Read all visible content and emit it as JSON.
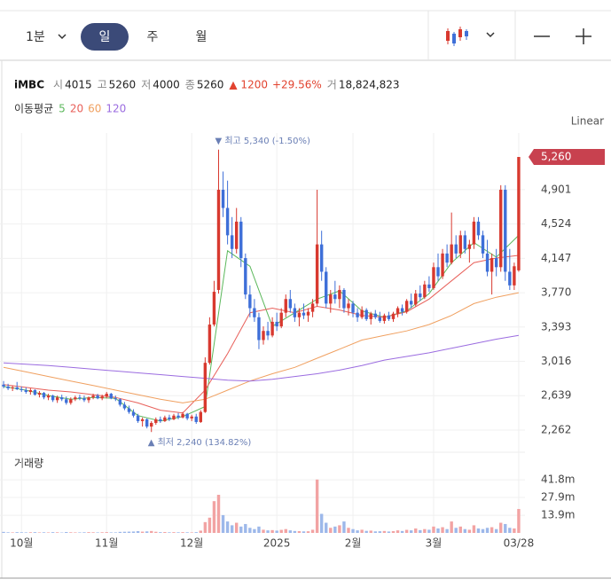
{
  "toolbar": {
    "intervals": [
      "1분",
      "일",
      "주",
      "월"
    ]
  },
  "header": {
    "symbol": "iMBC",
    "fields": [
      {
        "label": "시",
        "value": "4015"
      },
      {
        "label": "고",
        "value": "5260"
      },
      {
        "label": "저",
        "value": "4000"
      },
      {
        "label": "종",
        "value": "5260"
      }
    ],
    "change": "▲ 1200",
    "change_pct": "+29.56%",
    "volume_label": "거",
    "volume_value": "18,824,823"
  },
  "chart_data": {
    "type": "candlestick",
    "scale_button": "Linear",
    "ma_title": "이동평균",
    "up_color": "#d8392f",
    "down_color": "#3e6fd8",
    "grid": true,
    "ylim": [
      2067,
      5523
    ],
    "yticks": [
      {
        "value": 2262,
        "label": "2,262"
      },
      {
        "value": 2639,
        "label": "2,639"
      },
      {
        "value": 3016,
        "label": "3,016"
      },
      {
        "value": 3393,
        "label": "3,393"
      },
      {
        "value": 3770,
        "label": "3,770"
      },
      {
        "value": 4147,
        "label": "4,147"
      },
      {
        "value": 4524,
        "label": "4,524"
      },
      {
        "value": 4901,
        "label": "4,901"
      }
    ],
    "xlim": [
      -0.8,
      116.4
    ],
    "xticks": [
      {
        "value": 4,
        "label": "10월"
      },
      {
        "value": 23,
        "label": "11월"
      },
      {
        "value": 42,
        "label": "12월"
      },
      {
        "value": 61,
        "label": "2025"
      },
      {
        "value": 78,
        "label": "2월"
      },
      {
        "value": 96,
        "label": "3월"
      },
      {
        "value": 115,
        "label": "03/28"
      }
    ],
    "price_tag": {
      "value": 5260,
      "label": "5,260"
    },
    "annotations": [
      {
        "text": "▼ 최고 5,340 (-1.50%)",
        "value": 5340,
        "kind": "high"
      },
      {
        "text": "▲ 최저 2,240 (134.82%)",
        "value": 2240,
        "kind": "low"
      }
    ],
    "candles": [
      [
        2760,
        2800,
        2720,
        2740
      ],
      [
        2740,
        2770,
        2700,
        2720
      ],
      [
        2720,
        2750,
        2690,
        2730
      ],
      [
        2730,
        2790,
        2700,
        2710
      ],
      [
        2710,
        2740,
        2680,
        2700
      ],
      [
        2700,
        2730,
        2660,
        2680
      ],
      [
        2680,
        2720,
        2650,
        2700
      ],
      [
        2700,
        2710,
        2640,
        2650
      ],
      [
        2650,
        2690,
        2620,
        2670
      ],
      [
        2670,
        2680,
        2600,
        2620
      ],
      [
        2620,
        2660,
        2590,
        2640
      ],
      [
        2640,
        2650,
        2570,
        2590
      ],
      [
        2590,
        2640,
        2560,
        2620
      ],
      [
        2620,
        2650,
        2580,
        2600
      ],
      [
        2600,
        2630,
        2540,
        2560
      ],
      [
        2560,
        2620,
        2540,
        2600
      ],
      [
        2600,
        2640,
        2580,
        2620
      ],
      [
        2620,
        2650,
        2590,
        2610
      ],
      [
        2610,
        2640,
        2570,
        2590
      ],
      [
        2590,
        2630,
        2560,
        2620
      ],
      [
        2620,
        2660,
        2600,
        2640
      ],
      [
        2640,
        2660,
        2600,
        2610
      ],
      [
        2610,
        2650,
        2590,
        2630
      ],
      [
        2630,
        2680,
        2610,
        2660
      ],
      [
        2660,
        2670,
        2600,
        2610
      ],
      [
        2610,
        2640,
        2580,
        2600
      ],
      [
        2600,
        2610,
        2520,
        2540
      ],
      [
        2540,
        2570,
        2480,
        2500
      ],
      [
        2500,
        2530,
        2440,
        2460
      ],
      [
        2460,
        2490,
        2400,
        2420
      ],
      [
        2420,
        2440,
        2340,
        2360
      ],
      [
        2360,
        2400,
        2300,
        2380
      ],
      [
        2380,
        2390,
        2280,
        2300
      ],
      [
        2300,
        2360,
        2240,
        2340
      ],
      [
        2340,
        2400,
        2320,
        2380
      ],
      [
        2380,
        2410,
        2340,
        2360
      ],
      [
        2360,
        2420,
        2350,
        2400
      ],
      [
        2400,
        2430,
        2360,
        2380
      ],
      [
        2380,
        2440,
        2370,
        2420
      ],
      [
        2420,
        2450,
        2380,
        2400
      ],
      [
        2400,
        2460,
        2390,
        2440
      ],
      [
        2440,
        2450,
        2370,
        2390
      ],
      [
        2390,
        2430,
        2360,
        2410
      ],
      [
        2410,
        2440,
        2330,
        2350
      ],
      [
        2350,
        2480,
        2340,
        2460
      ],
      [
        2460,
        3060,
        2450,
        3000
      ],
      [
        3000,
        3500,
        2980,
        3420
      ],
      [
        3420,
        3900,
        3400,
        3780
      ],
      [
        3800,
        5340,
        3760,
        4900
      ],
      [
        4900,
        5100,
        4600,
        4700
      ],
      [
        4700,
        5000,
        4300,
        4400
      ],
      [
        4400,
        4600,
        4150,
        4250
      ],
      [
        4250,
        4700,
        4200,
        4550
      ],
      [
        4550,
        4600,
        4050,
        4150
      ],
      [
        4150,
        4200,
        3700,
        3750
      ],
      [
        3750,
        3850,
        3500,
        3600
      ],
      [
        3600,
        3700,
        3450,
        3500
      ],
      [
        3500,
        3550,
        3150,
        3250
      ],
      [
        3250,
        3400,
        3200,
        3350
      ],
      [
        3350,
        3450,
        3250,
        3300
      ],
      [
        3300,
        3500,
        3280,
        3450
      ],
      [
        3450,
        3550,
        3350,
        3400
      ],
      [
        3400,
        3600,
        3380,
        3550
      ],
      [
        3550,
        3750,
        3500,
        3700
      ],
      [
        3700,
        3800,
        3550,
        3600
      ],
      [
        3600,
        3650,
        3450,
        3500
      ],
      [
        3500,
        3600,
        3400,
        3550
      ],
      [
        3550,
        3650,
        3480,
        3520
      ],
      [
        3520,
        3600,
        3450,
        3560
      ],
      [
        3560,
        3700,
        3500,
        3650
      ],
      [
        3650,
        4900,
        3620,
        4300
      ],
      [
        4300,
        4450,
        3900,
        4000
      ],
      [
        4000,
        4050,
        3600,
        3650
      ],
      [
        3650,
        3800,
        3550,
        3750
      ],
      [
        3750,
        3900,
        3650,
        3700
      ],
      [
        3700,
        3850,
        3600,
        3800
      ],
      [
        3800,
        3820,
        3550,
        3600
      ],
      [
        3600,
        3700,
        3520,
        3650
      ],
      [
        3650,
        3680,
        3500,
        3550
      ],
      [
        3550,
        3600,
        3450,
        3500
      ],
      [
        3500,
        3620,
        3480,
        3580
      ],
      [
        3580,
        3600,
        3460,
        3480
      ],
      [
        3480,
        3560,
        3420,
        3540
      ],
      [
        3540,
        3580,
        3480,
        3500
      ],
      [
        3500,
        3560,
        3440,
        3460
      ],
      [
        3460,
        3540,
        3430,
        3520
      ],
      [
        3520,
        3560,
        3460,
        3480
      ],
      [
        3480,
        3560,
        3450,
        3540
      ],
      [
        3540,
        3620,
        3500,
        3600
      ],
      [
        3600,
        3640,
        3520,
        3560
      ],
      [
        3560,
        3700,
        3540,
        3680
      ],
      [
        3680,
        3760,
        3600,
        3640
      ],
      [
        3640,
        3800,
        3620,
        3760
      ],
      [
        3760,
        3850,
        3680,
        3720
      ],
      [
        3720,
        3900,
        3700,
        3860
      ],
      [
        3860,
        3950,
        3780,
        3820
      ],
      [
        3820,
        4100,
        3800,
        4050
      ],
      [
        4050,
        4200,
        3900,
        3950
      ],
      [
        3950,
        4250,
        3920,
        4200
      ],
      [
        4200,
        4300,
        4050,
        4100
      ],
      [
        4100,
        4650,
        4080,
        4300
      ],
      [
        4300,
        4400,
        4150,
        4200
      ],
      [
        4200,
        4450,
        4150,
        4400
      ],
      [
        4400,
        4450,
        4200,
        4250
      ],
      [
        4250,
        4350,
        4100,
        4300
      ],
      [
        4300,
        4600,
        4250,
        4550
      ],
      [
        4550,
        4600,
        4350,
        4400
      ],
      [
        4400,
        4450,
        4150,
        4200
      ],
      [
        4200,
        4350,
        3950,
        4000
      ],
      [
        4000,
        4200,
        3750,
        4150
      ],
      [
        4150,
        4250,
        3950,
        4050
      ],
      [
        4050,
        4950,
        4000,
        4900
      ],
      [
        4900,
        4950,
        3900,
        4000
      ],
      [
        4000,
        4250,
        3800,
        3850
      ],
      [
        3850,
        4100,
        3800,
        4060
      ],
      [
        4015,
        5260,
        4000,
        5260
      ]
    ],
    "ma": [
      {
        "name": "5",
        "color": "#5cb85c",
        "x": [
          0,
          5,
          10,
          15,
          20,
          25,
          30,
          35,
          40,
          45,
          50,
          55,
          60,
          65,
          70,
          75,
          80,
          85,
          90,
          95,
          100,
          105,
          110,
          115
        ],
        "values": [
          2740,
          2700,
          2640,
          2600,
          2620,
          2610,
          2420,
          2360,
          2410,
          2520,
          4230,
          4060,
          3400,
          3550,
          3700,
          3790,
          3570,
          3500,
          3570,
          3760,
          4100,
          4320,
          4160,
          4400
        ]
      },
      {
        "name": "20",
        "color": "#e8605a",
        "x": [
          0,
          5,
          10,
          15,
          20,
          25,
          30,
          35,
          40,
          45,
          50,
          55,
          60,
          65,
          70,
          75,
          80,
          85,
          90,
          95,
          100,
          105,
          110,
          115
        ],
        "values": [
          2760,
          2730,
          2700,
          2680,
          2650,
          2620,
          2560,
          2480,
          2450,
          2700,
          3100,
          3550,
          3600,
          3550,
          3620,
          3580,
          3520,
          3500,
          3560,
          3700,
          3900,
          4100,
          4150,
          4180
        ]
      },
      {
        "name": "60",
        "color": "#f0a060",
        "x": [
          0,
          5,
          10,
          15,
          20,
          25,
          30,
          35,
          40,
          45,
          50,
          55,
          60,
          65,
          70,
          75,
          80,
          85,
          90,
          95,
          100,
          105,
          110,
          115
        ],
        "values": [
          2950,
          2900,
          2850,
          2800,
          2750,
          2700,
          2650,
          2600,
          2560,
          2600,
          2700,
          2800,
          2880,
          2950,
          3050,
          3150,
          3250,
          3300,
          3350,
          3420,
          3520,
          3650,
          3720,
          3770
        ]
      },
      {
        "name": "120",
        "color": "#9b6ce0",
        "x": [
          0,
          5,
          10,
          15,
          20,
          25,
          30,
          35,
          40,
          45,
          50,
          55,
          60,
          65,
          70,
          75,
          80,
          85,
          90,
          95,
          100,
          105,
          110,
          115
        ],
        "values": [
          3000,
          2985,
          2970,
          2950,
          2930,
          2910,
          2890,
          2870,
          2850,
          2830,
          2810,
          2800,
          2820,
          2850,
          2880,
          2920,
          2970,
          3030,
          3070,
          3110,
          3160,
          3210,
          3260,
          3300
        ]
      }
    ],
    "volume": {
      "title": "거래량",
      "ylim": [
        0,
        60
      ],
      "yticks": [
        {
          "value": 13.9,
          "label": "13.9m"
        },
        {
          "value": 27.9,
          "label": "27.9m"
        },
        {
          "value": 41.8,
          "label": "41.8m"
        }
      ],
      "up_color": "#f2a3a3",
      "down_color": "#9db8ea",
      "values": [
        0.8,
        0.5,
        0.4,
        0.6,
        0.5,
        0.4,
        0.5,
        0.6,
        0.4,
        0.5,
        0.4,
        0.6,
        0.5,
        0.3,
        0.7,
        0.5,
        0.4,
        0.4,
        0.5,
        0.6,
        0.5,
        0.4,
        0.5,
        0.6,
        0.4,
        0.4,
        0.8,
        0.9,
        1.0,
        1.1,
        1.4,
        1.0,
        1.2,
        1.5,
        0.9,
        0.6,
        0.7,
        0.5,
        0.6,
        0.5,
        0.6,
        0.5,
        0.4,
        0.6,
        1.8,
        8.5,
        12,
        25,
        30,
        14,
        9,
        6,
        8,
        5,
        7,
        4,
        3,
        5,
        2.5,
        2,
        2.2,
        1.8,
        2.4,
        3,
        2,
        1.5,
        1.4,
        1.2,
        1.3,
        2.5,
        42,
        15,
        8,
        4,
        5,
        6,
        9,
        4,
        3,
        2,
        2.5,
        1.6,
        1.8,
        1.2,
        1.3,
        1.5,
        1.1,
        1.4,
        2,
        1.5,
        2.4,
        2,
        3.5,
        2.2,
        3,
        2.5,
        5,
        3.5,
        4.5,
        3,
        9,
        4,
        5,
        3,
        2.5,
        6,
        3.5,
        3,
        4,
        4.5,
        3,
        8,
        7,
        4,
        3.5,
        18.82
      ]
    }
  }
}
